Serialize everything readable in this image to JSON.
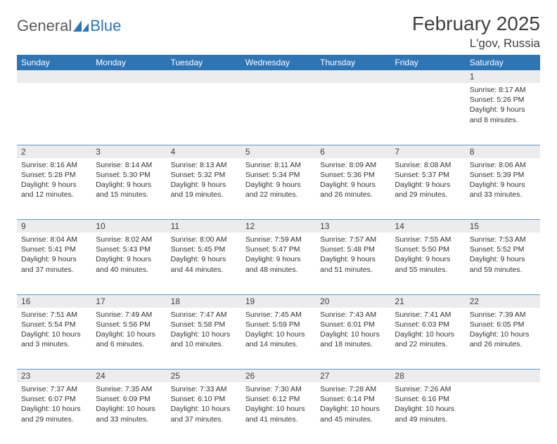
{
  "brand": {
    "part1": "General",
    "part2": "Blue"
  },
  "title": "February 2025",
  "location": "L'gov, Russia",
  "colors": {
    "header_bg": "#2e75b6",
    "header_text": "#ffffff",
    "daynum_bg": "#ececec",
    "row_border": "#5b9bd5",
    "text": "#333333"
  },
  "day_headers": [
    "Sunday",
    "Monday",
    "Tuesday",
    "Wednesday",
    "Thursday",
    "Friday",
    "Saturday"
  ],
  "weeks": [
    {
      "nums": [
        "",
        "",
        "",
        "",
        "",
        "",
        "1"
      ],
      "cells": [
        {
          "sunrise": "",
          "sunset": "",
          "daylight1": "",
          "daylight2": ""
        },
        {
          "sunrise": "",
          "sunset": "",
          "daylight1": "",
          "daylight2": ""
        },
        {
          "sunrise": "",
          "sunset": "",
          "daylight1": "",
          "daylight2": ""
        },
        {
          "sunrise": "",
          "sunset": "",
          "daylight1": "",
          "daylight2": ""
        },
        {
          "sunrise": "",
          "sunset": "",
          "daylight1": "",
          "daylight2": ""
        },
        {
          "sunrise": "",
          "sunset": "",
          "daylight1": "",
          "daylight2": ""
        },
        {
          "sunrise": "Sunrise: 8:17 AM",
          "sunset": "Sunset: 5:26 PM",
          "daylight1": "Daylight: 9 hours",
          "daylight2": "and 8 minutes."
        }
      ]
    },
    {
      "nums": [
        "2",
        "3",
        "4",
        "5",
        "6",
        "7",
        "8"
      ],
      "cells": [
        {
          "sunrise": "Sunrise: 8:16 AM",
          "sunset": "Sunset: 5:28 PM",
          "daylight1": "Daylight: 9 hours",
          "daylight2": "and 12 minutes."
        },
        {
          "sunrise": "Sunrise: 8:14 AM",
          "sunset": "Sunset: 5:30 PM",
          "daylight1": "Daylight: 9 hours",
          "daylight2": "and 15 minutes."
        },
        {
          "sunrise": "Sunrise: 8:13 AM",
          "sunset": "Sunset: 5:32 PM",
          "daylight1": "Daylight: 9 hours",
          "daylight2": "and 19 minutes."
        },
        {
          "sunrise": "Sunrise: 8:11 AM",
          "sunset": "Sunset: 5:34 PM",
          "daylight1": "Daylight: 9 hours",
          "daylight2": "and 22 minutes."
        },
        {
          "sunrise": "Sunrise: 8:09 AM",
          "sunset": "Sunset: 5:36 PM",
          "daylight1": "Daylight: 9 hours",
          "daylight2": "and 26 minutes."
        },
        {
          "sunrise": "Sunrise: 8:08 AM",
          "sunset": "Sunset: 5:37 PM",
          "daylight1": "Daylight: 9 hours",
          "daylight2": "and 29 minutes."
        },
        {
          "sunrise": "Sunrise: 8:06 AM",
          "sunset": "Sunset: 5:39 PM",
          "daylight1": "Daylight: 9 hours",
          "daylight2": "and 33 minutes."
        }
      ]
    },
    {
      "nums": [
        "9",
        "10",
        "11",
        "12",
        "13",
        "14",
        "15"
      ],
      "cells": [
        {
          "sunrise": "Sunrise: 8:04 AM",
          "sunset": "Sunset: 5:41 PM",
          "daylight1": "Daylight: 9 hours",
          "daylight2": "and 37 minutes."
        },
        {
          "sunrise": "Sunrise: 8:02 AM",
          "sunset": "Sunset: 5:43 PM",
          "daylight1": "Daylight: 9 hours",
          "daylight2": "and 40 minutes."
        },
        {
          "sunrise": "Sunrise: 8:00 AM",
          "sunset": "Sunset: 5:45 PM",
          "daylight1": "Daylight: 9 hours",
          "daylight2": "and 44 minutes."
        },
        {
          "sunrise": "Sunrise: 7:59 AM",
          "sunset": "Sunset: 5:47 PM",
          "daylight1": "Daylight: 9 hours",
          "daylight2": "and 48 minutes."
        },
        {
          "sunrise": "Sunrise: 7:57 AM",
          "sunset": "Sunset: 5:48 PM",
          "daylight1": "Daylight: 9 hours",
          "daylight2": "and 51 minutes."
        },
        {
          "sunrise": "Sunrise: 7:55 AM",
          "sunset": "Sunset: 5:50 PM",
          "daylight1": "Daylight: 9 hours",
          "daylight2": "and 55 minutes."
        },
        {
          "sunrise": "Sunrise: 7:53 AM",
          "sunset": "Sunset: 5:52 PM",
          "daylight1": "Daylight: 9 hours",
          "daylight2": "and 59 minutes."
        }
      ]
    },
    {
      "nums": [
        "16",
        "17",
        "18",
        "19",
        "20",
        "21",
        "22"
      ],
      "cells": [
        {
          "sunrise": "Sunrise: 7:51 AM",
          "sunset": "Sunset: 5:54 PM",
          "daylight1": "Daylight: 10 hours",
          "daylight2": "and 3 minutes."
        },
        {
          "sunrise": "Sunrise: 7:49 AM",
          "sunset": "Sunset: 5:56 PM",
          "daylight1": "Daylight: 10 hours",
          "daylight2": "and 6 minutes."
        },
        {
          "sunrise": "Sunrise: 7:47 AM",
          "sunset": "Sunset: 5:58 PM",
          "daylight1": "Daylight: 10 hours",
          "daylight2": "and 10 minutes."
        },
        {
          "sunrise": "Sunrise: 7:45 AM",
          "sunset": "Sunset: 5:59 PM",
          "daylight1": "Daylight: 10 hours",
          "daylight2": "and 14 minutes."
        },
        {
          "sunrise": "Sunrise: 7:43 AM",
          "sunset": "Sunset: 6:01 PM",
          "daylight1": "Daylight: 10 hours",
          "daylight2": "and 18 minutes."
        },
        {
          "sunrise": "Sunrise: 7:41 AM",
          "sunset": "Sunset: 6:03 PM",
          "daylight1": "Daylight: 10 hours",
          "daylight2": "and 22 minutes."
        },
        {
          "sunrise": "Sunrise: 7:39 AM",
          "sunset": "Sunset: 6:05 PM",
          "daylight1": "Daylight: 10 hours",
          "daylight2": "and 26 minutes."
        }
      ]
    },
    {
      "nums": [
        "23",
        "24",
        "25",
        "26",
        "27",
        "28",
        ""
      ],
      "cells": [
        {
          "sunrise": "Sunrise: 7:37 AM",
          "sunset": "Sunset: 6:07 PM",
          "daylight1": "Daylight: 10 hours",
          "daylight2": "and 29 minutes."
        },
        {
          "sunrise": "Sunrise: 7:35 AM",
          "sunset": "Sunset: 6:09 PM",
          "daylight1": "Daylight: 10 hours",
          "daylight2": "and 33 minutes."
        },
        {
          "sunrise": "Sunrise: 7:33 AM",
          "sunset": "Sunset: 6:10 PM",
          "daylight1": "Daylight: 10 hours",
          "daylight2": "and 37 minutes."
        },
        {
          "sunrise": "Sunrise: 7:30 AM",
          "sunset": "Sunset: 6:12 PM",
          "daylight1": "Daylight: 10 hours",
          "daylight2": "and 41 minutes."
        },
        {
          "sunrise": "Sunrise: 7:28 AM",
          "sunset": "Sunset: 6:14 PM",
          "daylight1": "Daylight: 10 hours",
          "daylight2": "and 45 minutes."
        },
        {
          "sunrise": "Sunrise: 7:26 AM",
          "sunset": "Sunset: 6:16 PM",
          "daylight1": "Daylight: 10 hours",
          "daylight2": "and 49 minutes."
        },
        {
          "sunrise": "",
          "sunset": "",
          "daylight1": "",
          "daylight2": ""
        }
      ]
    }
  ]
}
